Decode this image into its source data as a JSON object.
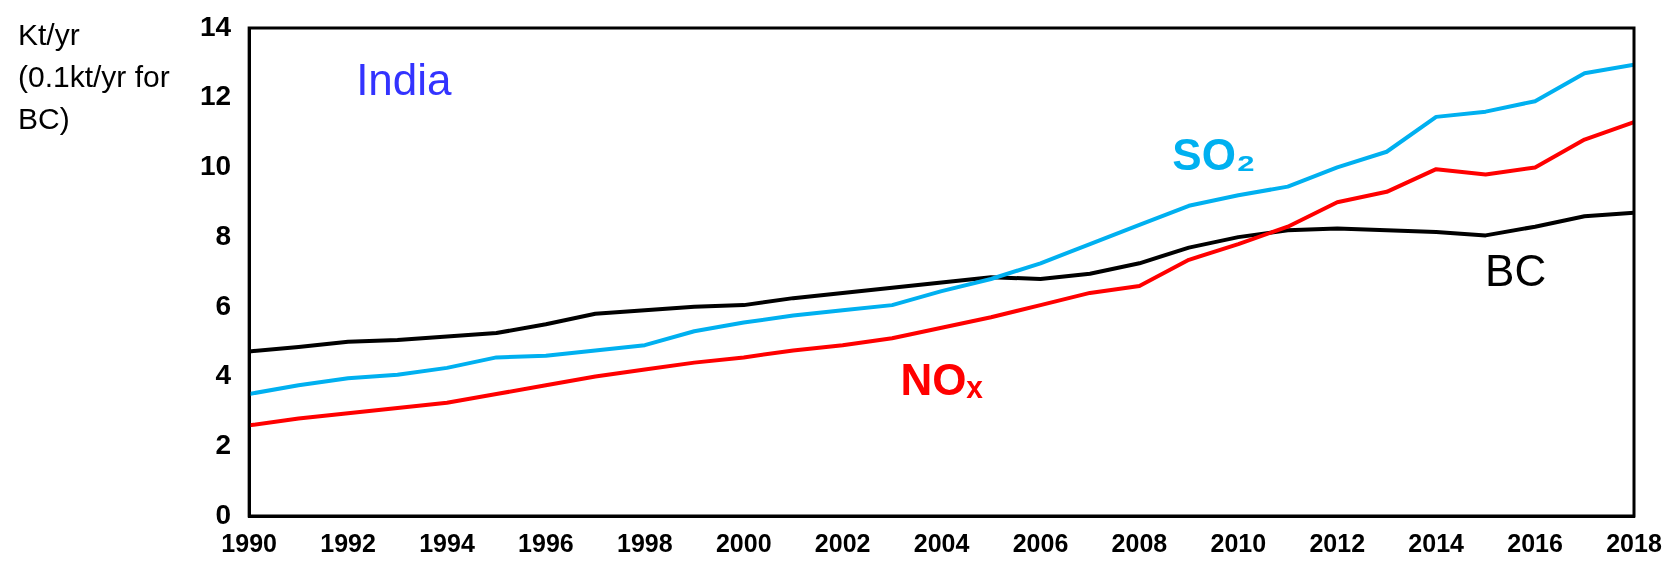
{
  "chart_data": {
    "type": "line",
    "title": "India",
    "ylabel": "Kt/yr (0.1kt/yr for BC)",
    "x": [
      1990,
      1991,
      1992,
      1993,
      1994,
      1995,
      1996,
      1997,
      1998,
      1999,
      2000,
      2001,
      2002,
      2003,
      2004,
      2005,
      2006,
      2007,
      2008,
      2009,
      2010,
      2011,
      2012,
      2013,
      2014,
      2015,
      2016,
      2017,
      2018
    ],
    "xlim": [
      1990,
      2018
    ],
    "xticks": [
      1990,
      1992,
      1994,
      1996,
      1998,
      2000,
      2002,
      2004,
      2006,
      2008,
      2010,
      2012,
      2014,
      2016,
      2018
    ],
    "ylim": [
      0,
      14
    ],
    "yticks": [
      0,
      2,
      4,
      6,
      8,
      10,
      12,
      14
    ],
    "grid": false,
    "legend": false,
    "marker": "none",
    "line_style": "solid",
    "series": [
      {
        "name": "SO₂",
        "color": "#00b0f0",
        "values": [
          3.5,
          3.75,
          3.95,
          4.05,
          4.25,
          4.55,
          4.6,
          4.75,
          4.9,
          5.3,
          5.55,
          5.75,
          5.9,
          6.05,
          6.45,
          6.8,
          7.25,
          7.8,
          8.35,
          8.9,
          9.2,
          9.45,
          10.0,
          10.45,
          11.45,
          11.6,
          11.9,
          12.7,
          12.95
        ]
      },
      {
        "name": "NOₓ",
        "color": "#ff0000",
        "values": [
          2.6,
          2.8,
          2.95,
          3.1,
          3.25,
          3.5,
          3.75,
          4.0,
          4.2,
          4.4,
          4.55,
          4.75,
          4.9,
          5.1,
          5.4,
          5.7,
          6.05,
          6.4,
          6.6,
          7.35,
          7.8,
          8.3,
          9.0,
          9.3,
          9.95,
          9.8,
          10.0,
          10.8,
          11.3
        ]
      },
      {
        "name": "BC",
        "color": "#000000",
        "values": [
          4.72,
          4.85,
          5.0,
          5.05,
          5.15,
          5.25,
          5.5,
          5.8,
          5.9,
          6.0,
          6.05,
          6.25,
          6.4,
          6.55,
          6.7,
          6.85,
          6.8,
          6.95,
          7.25,
          7.7,
          8.0,
          8.2,
          8.25,
          8.2,
          8.15,
          8.05,
          8.3,
          8.6,
          8.7
        ]
      }
    ]
  }
}
